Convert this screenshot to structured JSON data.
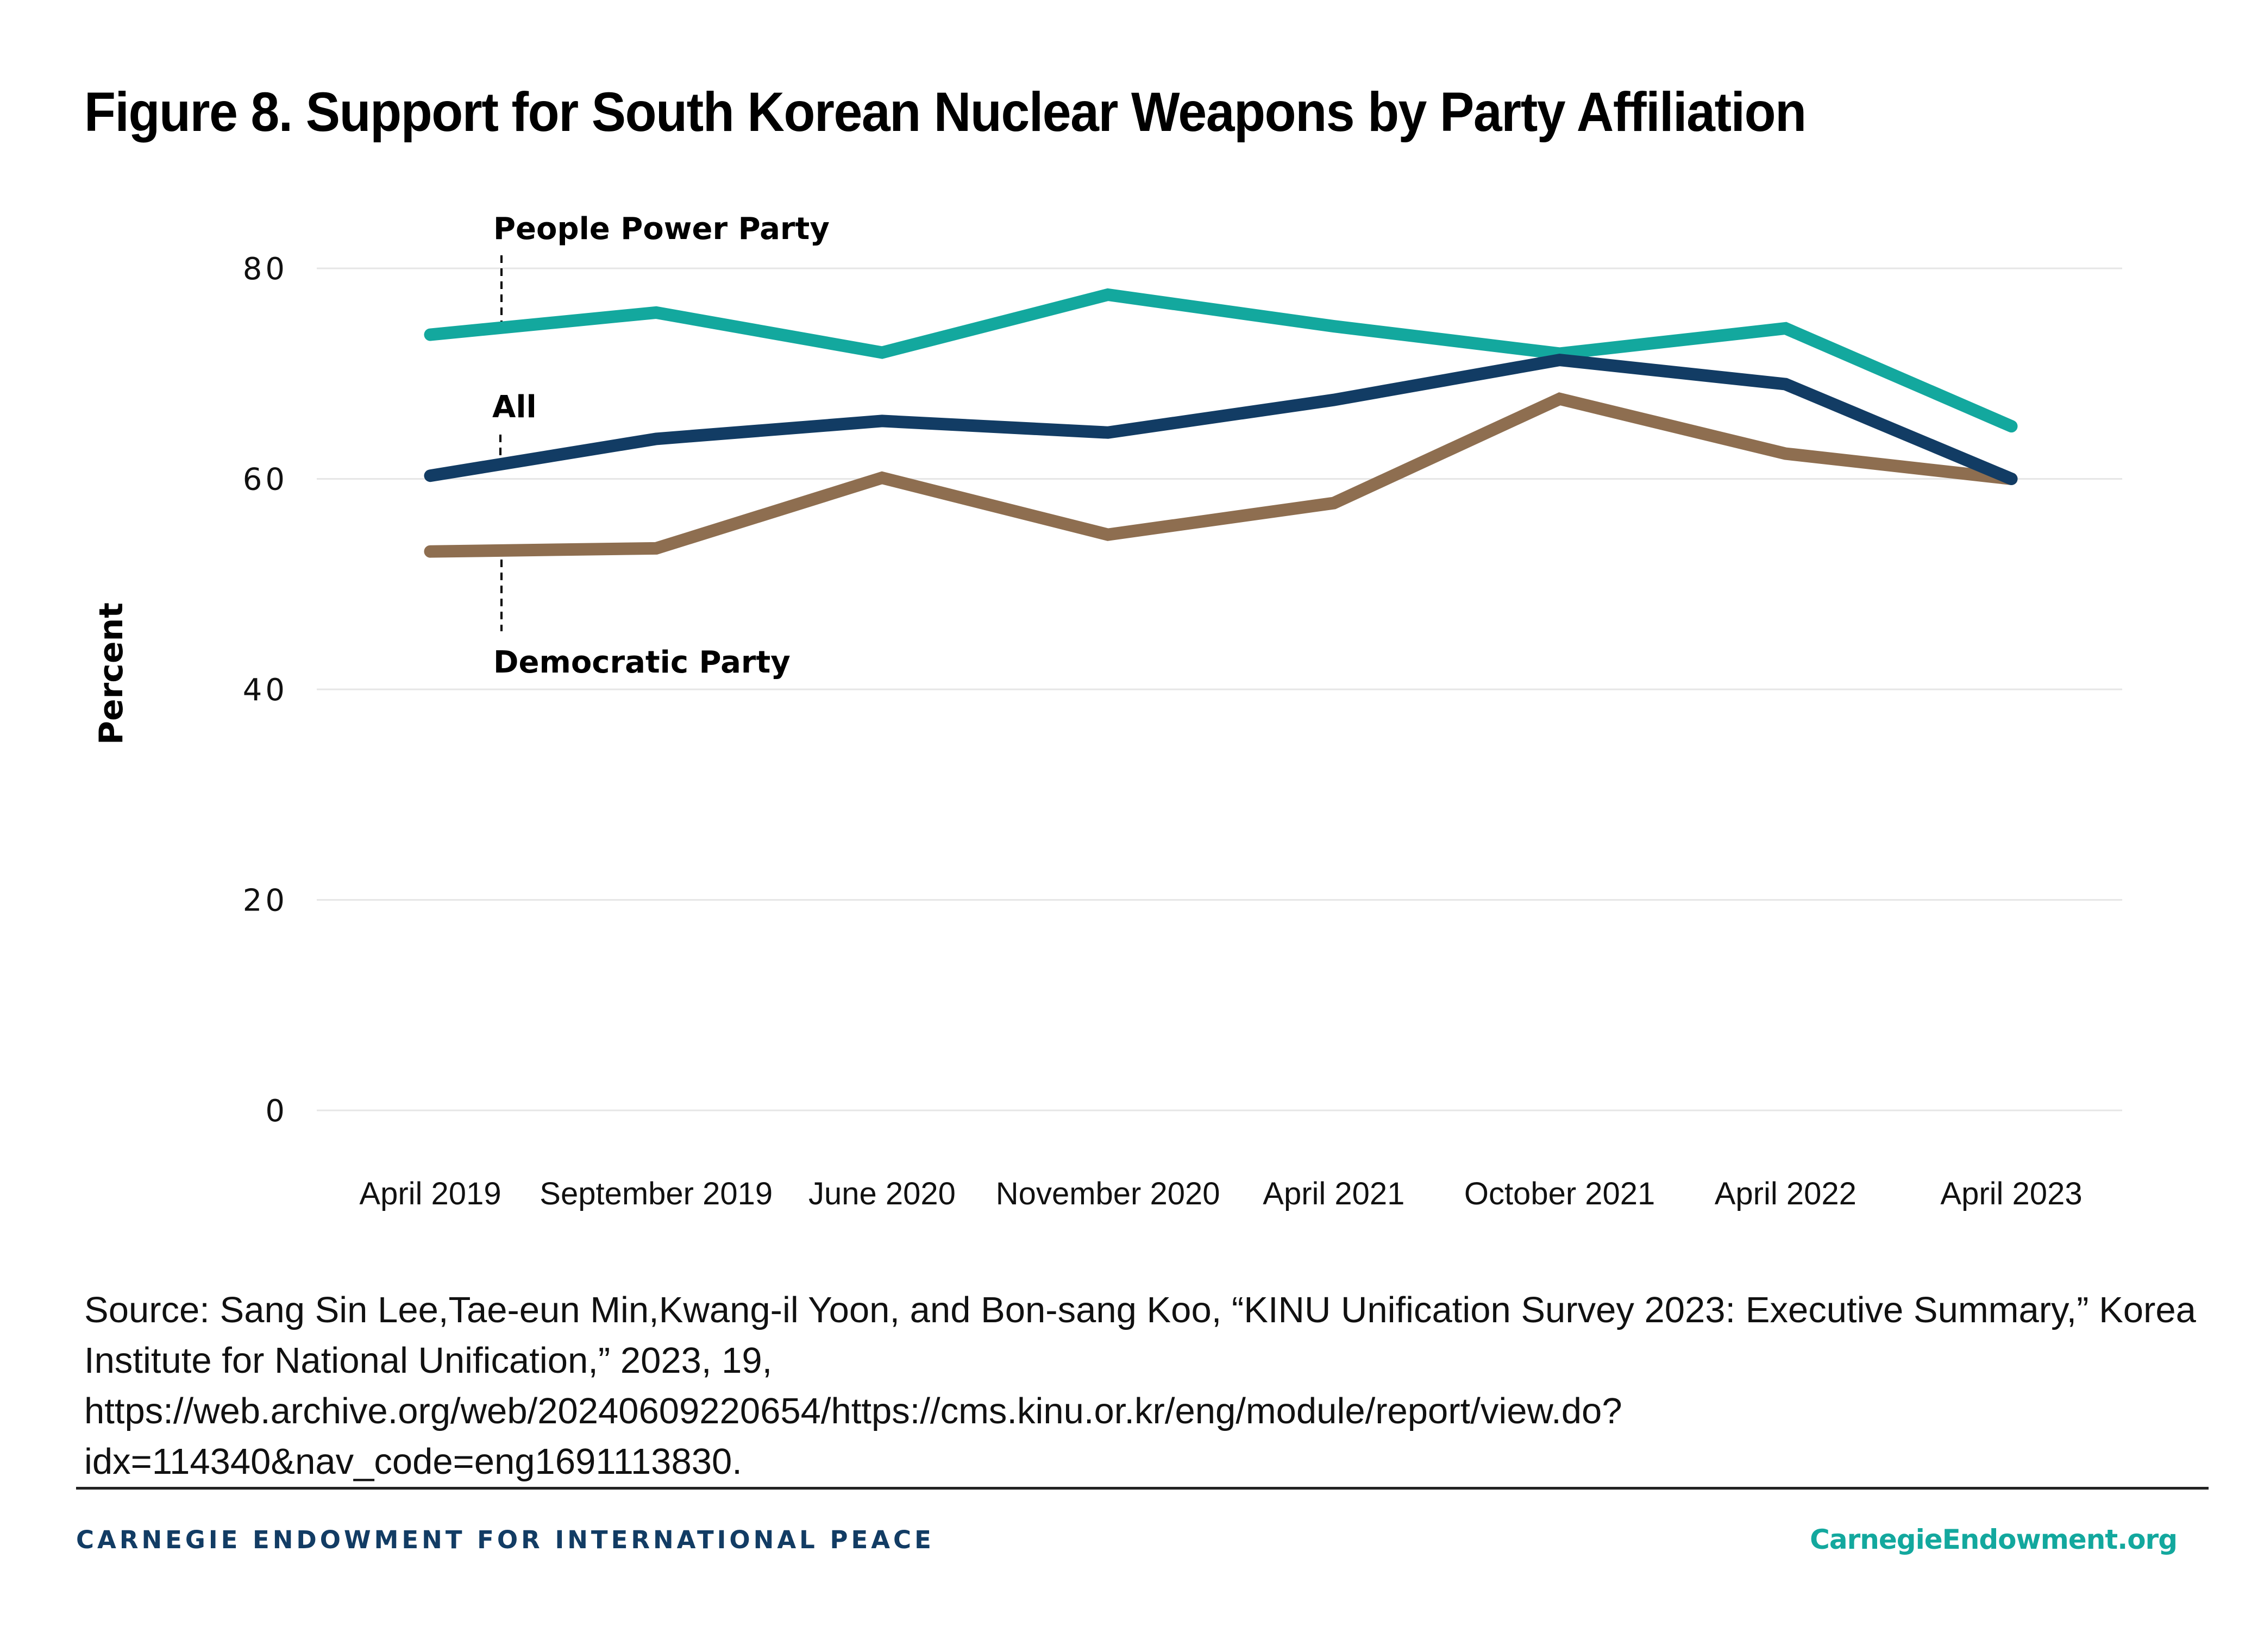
{
  "header": {
    "title": "Figure 8. Support for South Korean Nuclear Weapons by Party Affiliation"
  },
  "chart_data": {
    "type": "line",
    "title": "Figure 8. Support for South Korean Nuclear Weapons by Party Affiliation",
    "xlabel": "",
    "ylabel": "Percent",
    "ylim": [
      0,
      80
    ],
    "yticks": [
      0,
      20,
      40,
      60,
      80
    ],
    "ytick_labels": [
      "0",
      "20",
      "40",
      "60",
      "80"
    ],
    "grid": true,
    "legend": "inline-annotations-left",
    "categories": [
      "April 2019",
      "September 2019",
      "June 2020",
      "November 2020",
      "April 2021",
      "October 2021",
      "April 2022",
      "April 2023"
    ],
    "series": [
      {
        "name": "People Power Party",
        "color": "#13A89E",
        "values": [
          73.7,
          75.8,
          72.0,
          77.5,
          74.5,
          71.9,
          74.3,
          65.0
        ]
      },
      {
        "name": "All",
        "color": "#123C64",
        "values": [
          60.3,
          63.8,
          65.5,
          64.4,
          67.5,
          71.3,
          69.0,
          60.0
        ]
      },
      {
        "name": "Democratic Party",
        "color": "#8E6E50",
        "values": [
          53.1,
          53.4,
          60.1,
          54.7,
          57.7,
          67.6,
          62.4,
          60.0
        ]
      }
    ]
  },
  "source": {
    "text": "Source: Sang Sin Lee,Tae-eun Min,Kwang-il Yoon, and Bon-sang Koo, “KINU Unification Survey 2023: Executive Summary,” Korea Institute for National Unification,” 2023, 19, https://web.archive.org/web/20240609220654/https://cms.kinu.or.kr/eng/module/report/view.do?idx=114340&nav_code=eng1691113830."
  },
  "footer": {
    "organization": "CARNEGIE ENDOWMENT FOR INTERNATIONAL PEACE",
    "website": "CarnegieEndowment.org",
    "organization_color": "#123C64",
    "website_color": "#13A89E"
  }
}
